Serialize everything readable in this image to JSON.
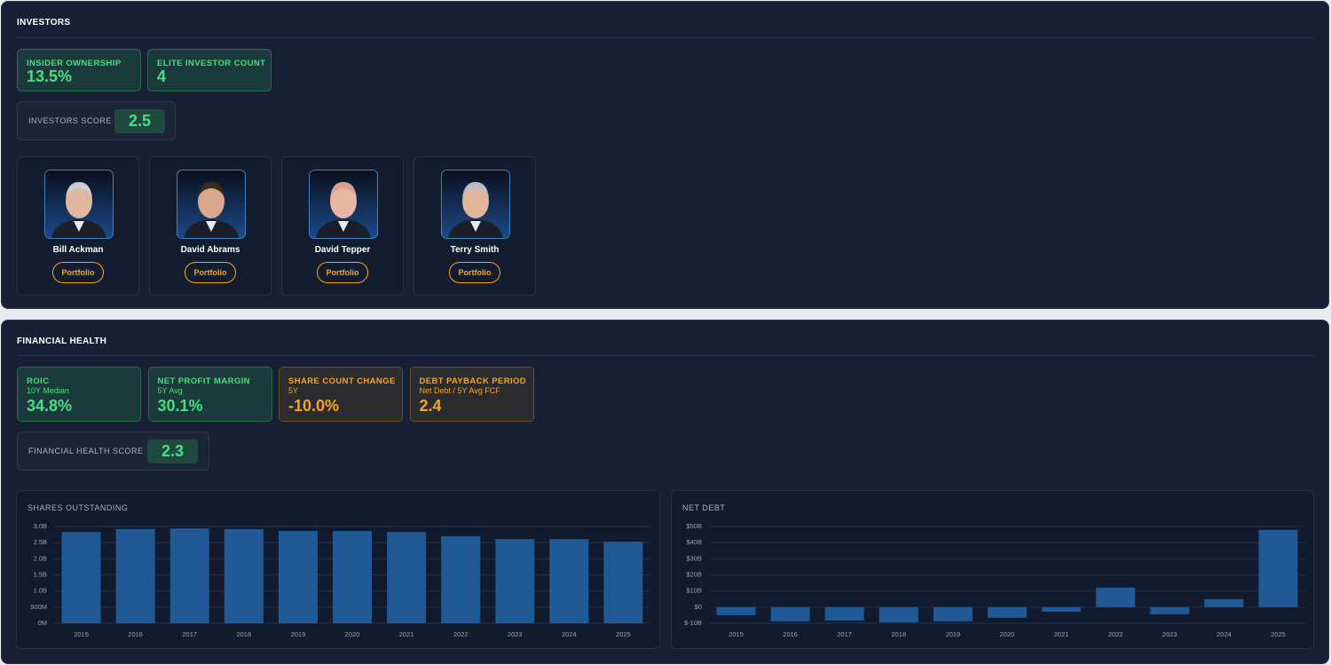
{
  "investors": {
    "title": "INVESTORS",
    "metrics": [
      {
        "label": "INSIDER OWNERSHIP",
        "value": "13.5%"
      },
      {
        "label": "ELITE INVESTOR COUNT",
        "value": "4"
      }
    ],
    "score": {
      "label": "INVESTORS SCORE",
      "value": "2.5"
    },
    "people": [
      {
        "name": "Bill Ackman",
        "button": "Portfolio"
      },
      {
        "name": "David Abrams",
        "button": "Portfolio"
      },
      {
        "name": "David Tepper",
        "button": "Portfolio"
      },
      {
        "name": "Terry Smith",
        "button": "Portfolio"
      }
    ]
  },
  "financial_health": {
    "title": "FINANCIAL HEALTH",
    "metrics": [
      {
        "label": "ROIC",
        "sublabel": "10Y Median",
        "value": "34.8%",
        "tone": "green"
      },
      {
        "label": "NET PROFIT MARGIN",
        "sublabel": "5Y Avg",
        "value": "30.1%",
        "tone": "green"
      },
      {
        "label": "SHARE COUNT CHANGE",
        "sublabel": "5Y",
        "value": "-10.0%",
        "tone": "orange"
      },
      {
        "label": "DEBT PAYBACK PERIOD",
        "sublabel": "Net Debt / 5Y Avg FCF",
        "value": "2.4",
        "tone": "orange"
      }
    ],
    "score": {
      "label": "FINANCIAL HEALTH SCORE",
      "value": "2.3"
    },
    "charts": [
      {
        "type": "bar",
        "title": "SHARES OUTSTANDING",
        "color": "#1f5a96",
        "grid": true,
        "categories": [
          "2015",
          "2016",
          "2017",
          "2018",
          "2019",
          "2020",
          "2021",
          "2022",
          "2023",
          "2024",
          "2025"
        ],
        "values": [
          2.83,
          2.92,
          2.94,
          2.92,
          2.86,
          2.86,
          2.83,
          2.7,
          2.61,
          2.61,
          2.53
        ],
        "ylim": [
          0,
          3.0
        ],
        "yticks": [
          {
            "value": 0,
            "label": "0M"
          },
          {
            "value": 0.5,
            "label": "500M"
          },
          {
            "value": 1.0,
            "label": "1.0B"
          },
          {
            "value": 1.5,
            "label": "1.5B"
          },
          {
            "value": 2.0,
            "label": "2.0B"
          },
          {
            "value": 2.5,
            "label": "2.5B"
          },
          {
            "value": 3.0,
            "label": "3.0B"
          }
        ]
      },
      {
        "type": "bar",
        "title": "NET DEBT",
        "color": "#1f5a96",
        "grid": true,
        "categories": [
          "2015",
          "2016",
          "2017",
          "2018",
          "2019",
          "2020",
          "2021",
          "2022",
          "2023",
          "2024",
          "2025"
        ],
        "values": [
          -5.0,
          -8.8,
          -8.3,
          -9.4,
          -8.8,
          -6.6,
          -2.8,
          12.1,
          -4.4,
          5.0,
          47.9
        ],
        "ylim": [
          -10,
          50
        ],
        "yticks": [
          {
            "value": -10,
            "label": "$-10B"
          },
          {
            "value": 0,
            "label": "$0"
          },
          {
            "value": 10,
            "label": "$10B"
          },
          {
            "value": 20,
            "label": "$20B"
          },
          {
            "value": 30,
            "label": "$30B"
          },
          {
            "value": 40,
            "label": "$40B"
          },
          {
            "value": 50,
            "label": "$50B"
          }
        ]
      }
    ]
  }
}
